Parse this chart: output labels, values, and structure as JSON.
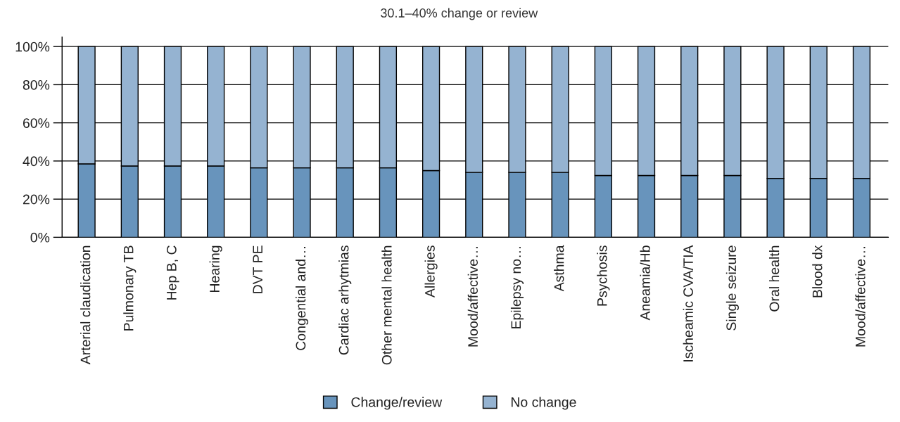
{
  "chart_data": {
    "type": "bar",
    "title": "30.1–40% change or review",
    "stacked": true,
    "categories": [
      "Arterial claudication",
      "Pulmonary TB",
      "Hep B, C",
      "Hearing",
      "DVT PE",
      "Congential and…",
      "Cardiac arhytmias",
      "Other mental health",
      "Allergies",
      "Mood/affective…",
      "Epilepsy no…",
      "Asthma",
      "Psychosis",
      "Aneamia/Hb",
      "Ischeamic CVA/TIA",
      "Single seizure",
      "Oral health",
      "Blood dx",
      "Mood/affective…"
    ],
    "series": [
      {
        "name": "Change/review",
        "color": "#6894bc",
        "values": [
          38.5,
          37.4,
          37.4,
          37.4,
          36.4,
          36.4,
          36.4,
          36.4,
          35.0,
          34.0,
          34.0,
          34.0,
          32.4,
          32.4,
          32.4,
          32.4,
          30.9,
          30.9,
          30.9
        ]
      },
      {
        "name": "No change",
        "color": "#95b3d1",
        "values": [
          61.5,
          62.6,
          62.6,
          62.6,
          63.6,
          63.6,
          63.6,
          63.6,
          65.0,
          66.0,
          66.0,
          66.0,
          67.6,
          67.6,
          67.6,
          67.6,
          69.1,
          69.1,
          69.1
        ]
      }
    ],
    "ylim": [
      0,
      105
    ],
    "yticks": [
      {
        "value": 0,
        "label": "0%"
      },
      {
        "value": 20,
        "label": "20%"
      },
      {
        "value": 40,
        "label": "40%"
      },
      {
        "value": 60,
        "label": "60%"
      },
      {
        "value": 80,
        "label": "80%"
      },
      {
        "value": 100,
        "label": "100%"
      }
    ],
    "grid": "y",
    "legend": "bottom"
  }
}
